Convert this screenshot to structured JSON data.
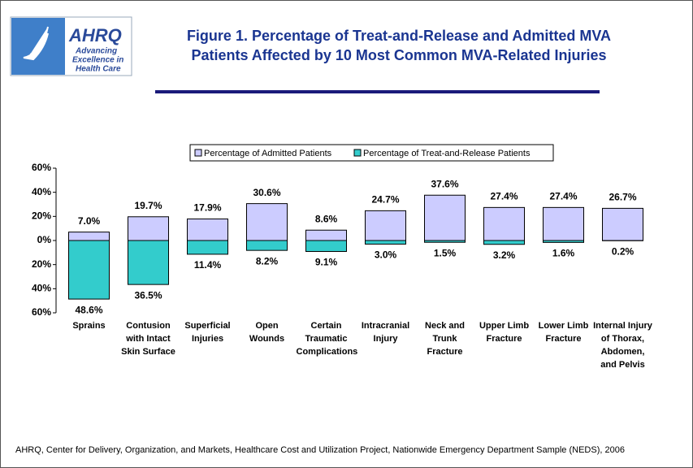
{
  "logo": {
    "name": "AHRQ",
    "tagline": [
      "Advancing",
      "Excellence in",
      "Health Care"
    ]
  },
  "chart_data": {
    "type": "bar",
    "title": [
      "Figure 1.  Percentage of Treat-and-Release and Admitted MVA",
      "Patients Affected by 10 Most Common MVA-Related Injuries"
    ],
    "categories": [
      "Sprains",
      "Contusion with Intact Skin Surface",
      "Superficial Injuries",
      "Open Wounds",
      "Certain Traumatic Complications",
      "Intracranial Injury",
      "Neck and Trunk Fracture",
      "Upper Limb Fracture",
      "Lower Limb Fracture",
      "Internal Injury of Thorax, Abdomen, and Pelvis"
    ],
    "series": [
      {
        "name": "Percentage of Admitted Patients",
        "color": "#ccccff",
        "values": [
          7.0,
          19.7,
          17.9,
          30.6,
          8.6,
          24.7,
          37.6,
          27.4,
          27.4,
          26.7
        ],
        "value_labels": [
          "7.0%",
          "19.7%",
          "17.9%",
          "30.6%",
          "8.6%",
          "24.7%",
          "37.6%",
          "27.4%",
          "27.4%",
          "26.7%"
        ]
      },
      {
        "name": "Percentage of Treat-and-Release Patients",
        "color": "#33cccc",
        "values": [
          -48.6,
          -36.5,
          -11.4,
          -8.2,
          -9.1,
          -3.0,
          -1.5,
          -3.2,
          -1.6,
          -0.2
        ],
        "value_labels": [
          "48.6%",
          "36.5%",
          "11.4%",
          "8.2%",
          "9.1%",
          "3.0%",
          "1.5%",
          "3.2%",
          "1.6%",
          "0.2%"
        ]
      }
    ],
    "ylim": [
      -60,
      60
    ],
    "yticks": [
      {
        "value": 60,
        "label": "60%"
      },
      {
        "value": 40,
        "label": "40%"
      },
      {
        "value": 20,
        "label": "20%"
      },
      {
        "value": 0,
        "label": "0%"
      },
      {
        "value": -20,
        "label": "20%"
      },
      {
        "value": -40,
        "label": "40%"
      },
      {
        "value": -60,
        "label": "60%"
      }
    ],
    "grid": false,
    "legend": "top",
    "source": "AHRQ, Center for Delivery, Organization, and Markets, Healthcare Cost and Utilization Project, Nationwide Emergency Department Sample (NEDS), 2006"
  }
}
